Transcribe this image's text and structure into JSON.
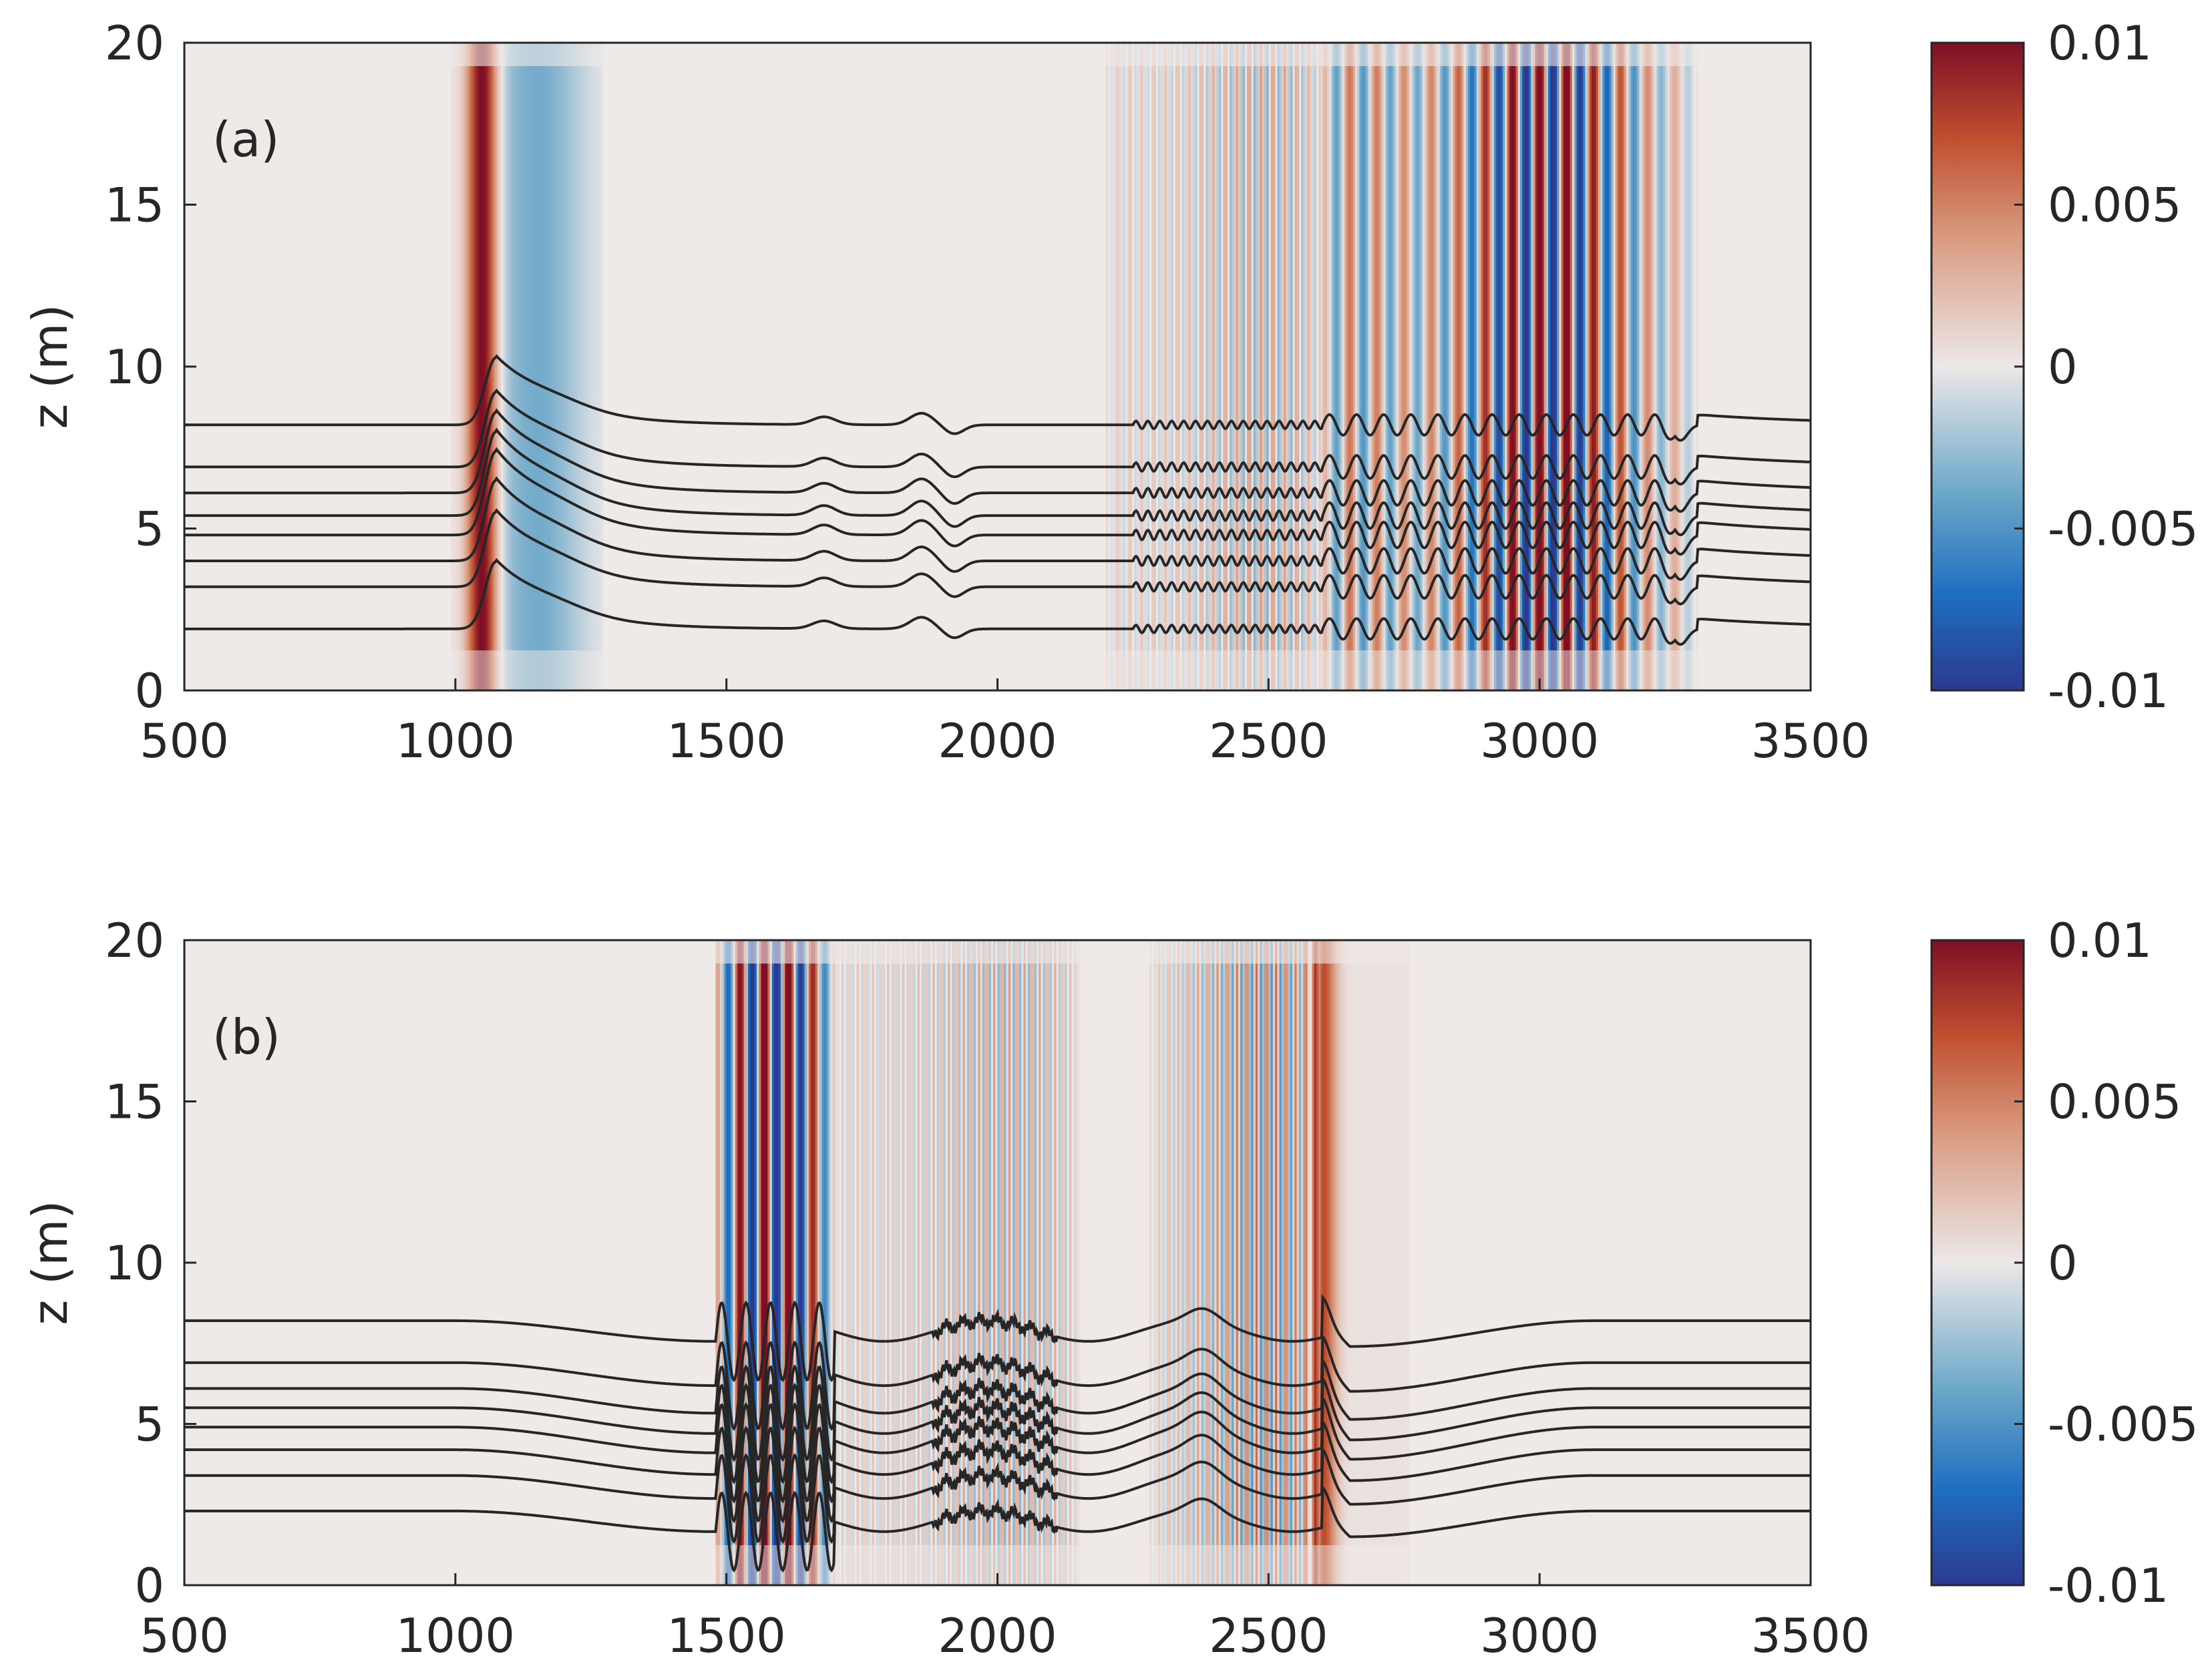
{
  "chart_data": [
    {
      "type": "heatmap",
      "panel_label": "(a)",
      "xlabel": "",
      "ylabel": "z (m)",
      "xlim": [
        500,
        3500
      ],
      "ylim": [
        0,
        20
      ],
      "xticks": [
        "500",
        "1000",
        "1500",
        "2000",
        "2500",
        "3000",
        "3500"
      ],
      "yticks": [
        "0",
        "5",
        "10",
        "15",
        "20"
      ],
      "colorbar": {
        "range": [
          -0.01,
          0.01
        ],
        "ticks": [
          "0.01",
          "0.005",
          "0",
          "-0.005",
          "-0.01"
        ]
      },
      "field_packets": [
        {
          "x0": 1050,
          "width": 28,
          "wavelength": 0,
          "amp": 0.011
        },
        {
          "x0": 1150,
          "width": 90,
          "wavelength": 0,
          "amp": -0.004
        },
        {
          "x_start": 2200,
          "x_end": 2600,
          "wavelength": 22,
          "amp": 0.004
        },
        {
          "x_start": 2600,
          "x_end": 3290,
          "wavelength": 50,
          "amp": 0.012
        }
      ],
      "contour_levels": [
        8.2,
        6.9,
        6.1,
        5.4,
        4.8,
        4.0,
        3.2,
        1.9
      ],
      "wave_fronts": {
        "solitary_x": 1075,
        "train_start": 2600,
        "train_end": 3280
      }
    },
    {
      "type": "heatmap",
      "panel_label": "(b)",
      "xlabel": "",
      "ylabel": "z (m)",
      "xlim": [
        500,
        3500
      ],
      "ylim": [
        0,
        20
      ],
      "xticks": [
        "500",
        "1000",
        "1500",
        "2000",
        "2500",
        "3000",
        "3500"
      ],
      "yticks": [
        "0",
        "5",
        "10",
        "15",
        "20"
      ],
      "colorbar": {
        "range": [
          -0.01,
          0.01
        ],
        "ticks": [
          "0.01",
          "0.005",
          "0",
          "-0.005",
          "-0.01"
        ]
      },
      "field_packets": [
        {
          "x_start": 1480,
          "x_end": 1700,
          "wavelength": 45,
          "amp": 0.013
        },
        {
          "x_start": 1700,
          "x_end": 2150,
          "wavelength": 14,
          "amp": 0.004
        },
        {
          "x_start": 2280,
          "x_end": 2600,
          "wavelength": 18,
          "amp": 0.006
        },
        {
          "x0": 2600,
          "width": 25,
          "wavelength": 0,
          "amp": 0.007
        }
      ],
      "contour_levels": [
        8.2,
        6.9,
        6.1,
        5.5,
        4.9,
        4.2,
        3.4,
        2.3
      ],
      "wave_fronts": {
        "train_start": 1480,
        "train_end": 1700,
        "pulse_x": 2600
      }
    }
  ],
  "colors": {
    "high": "#7f0f25",
    "mid_high": "#c0502f",
    "neutral": "#ece8e8",
    "mid_low": "#6aa6c8",
    "low": "#2b3a8f",
    "contour": "#262626",
    "background": "#efe9e8"
  }
}
